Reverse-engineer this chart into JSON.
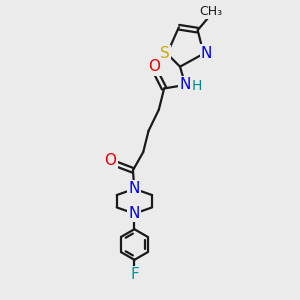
{
  "background_color": "#ebebeb",
  "bond_color": "#1a1a1a",
  "colors": {
    "N": "#0000ee",
    "O": "#ee0000",
    "S": "#ccaa00",
    "F": "#009999",
    "C": "#1a1a1a",
    "H": "#008888"
  },
  "font_size": 11,
  "small_font": 9,
  "lw": 1.6
}
